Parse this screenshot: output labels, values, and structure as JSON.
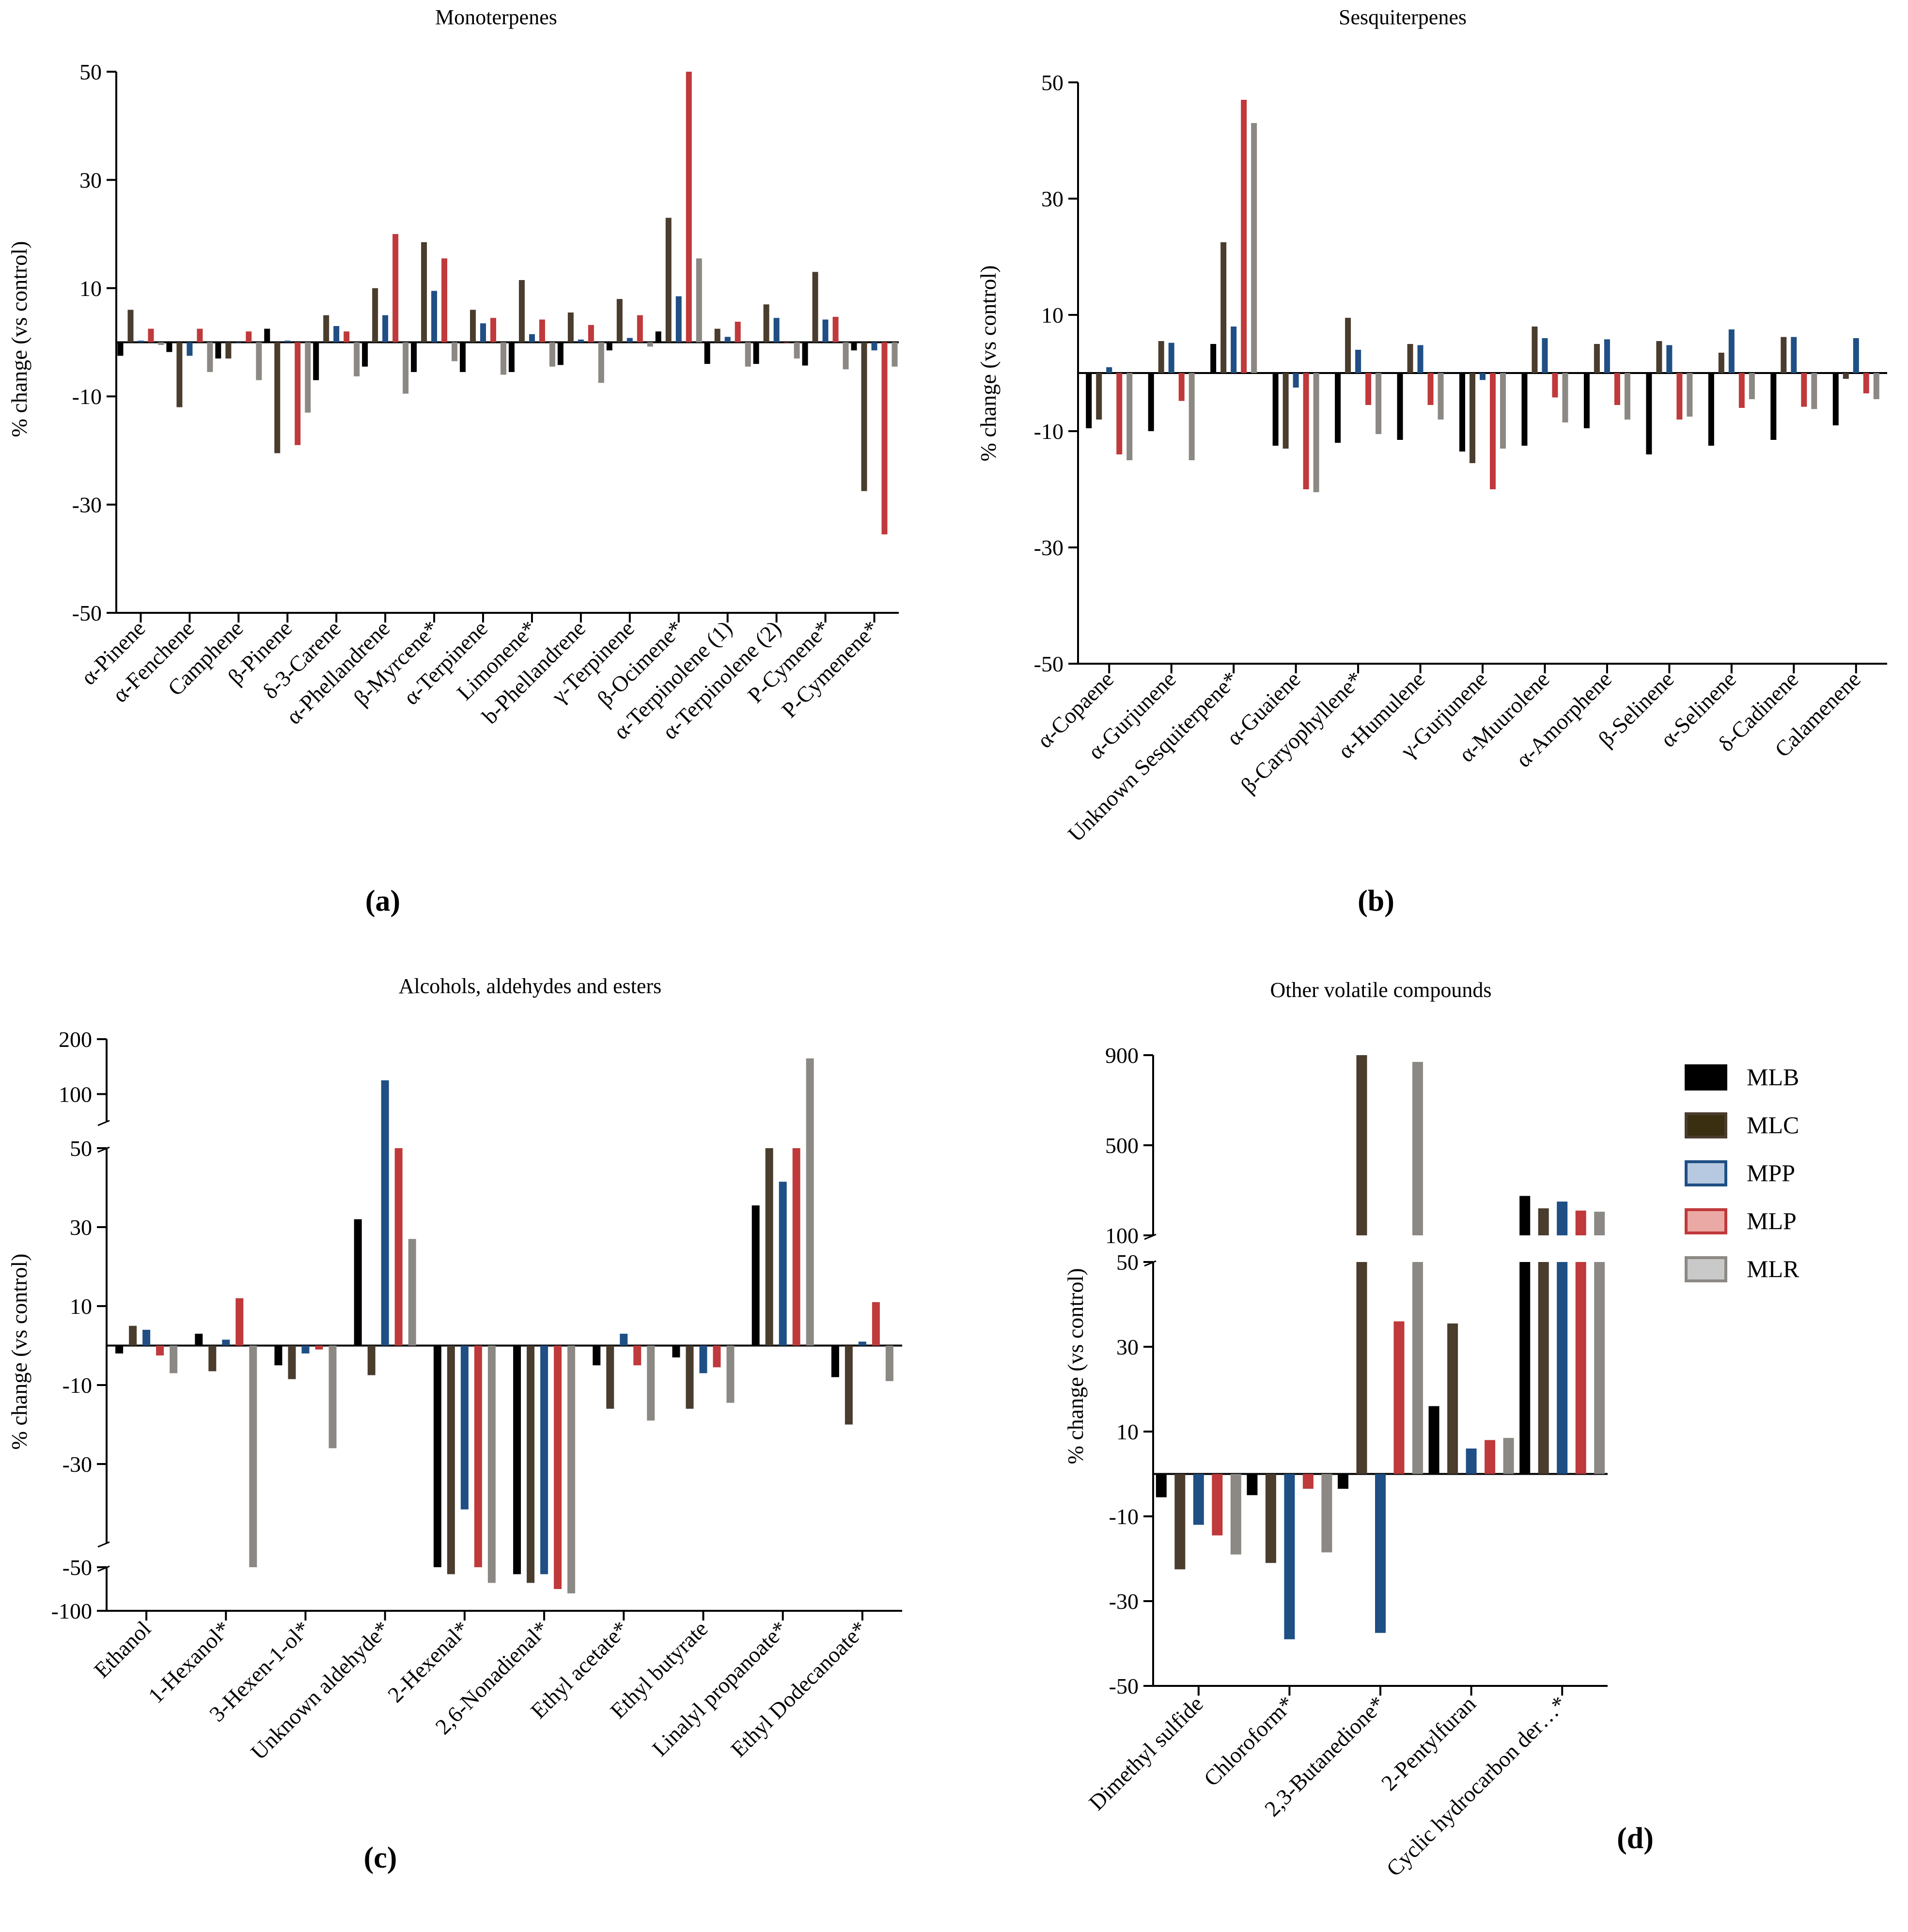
{
  "colors": {
    "MLB": "#000000",
    "MLC": "#4a3d2e",
    "MPP": "#1f4f85",
    "MLP": "#c0393b",
    "MLR": "#8c8984"
  },
  "legend": {
    "items": [
      {
        "key": "MLB",
        "label": "MLB",
        "fill": "#000000",
        "edge": "#000000"
      },
      {
        "key": "MLC",
        "label": "MLC",
        "fill": "#3a2f10",
        "edge": "#4a3d2e"
      },
      {
        "key": "MPP",
        "label": "MPP",
        "fill": "#b7c9e0",
        "edge": "#1f4f85"
      },
      {
        "key": "MLP",
        "label": "MLP",
        "fill": "#eba9a5",
        "edge": "#c0393b"
      },
      {
        "key": "MLR",
        "label": "MLR",
        "fill": "#c9c9c9",
        "edge": "#8c8984"
      }
    ]
  },
  "chart_data": [
    {
      "id": "a",
      "type": "bar",
      "panel_label": "(a)",
      "title": "Monoterpenes",
      "ylabel": "% change (vs control)",
      "ylim": [
        -50,
        50
      ],
      "yticks": [
        -50,
        -30,
        -10,
        10,
        30,
        50
      ],
      "categories": [
        "α-Pinene",
        "α-Fenchene",
        "Camphene",
        "β-Pinene",
        "δ-3-Carene",
        "α-Phellandrene",
        "β-Myrcene*",
        "α-Terpinene",
        "Limonene*",
        "b-Phellandrene",
        "γ-Terpinene",
        "β-Ocimene*",
        "α-Terpinolene (1)",
        "α-Terpinolene (2)",
        "P-Cymene*",
        "P-Cymenene*"
      ],
      "series": [
        {
          "name": "MLB",
          "values": [
            -2.5,
            -1.8,
            -3,
            2.5,
            -7,
            -4.5,
            -5.5,
            -5.5,
            -5.5,
            -4.2,
            -1.5,
            2,
            -4,
            -4,
            -4.3,
            -1.5
          ]
        },
        {
          "name": "MLC",
          "values": [
            6,
            -12,
            -3,
            -20.5,
            5,
            10,
            18.5,
            6,
            11.5,
            5.5,
            8,
            23,
            2.5,
            7,
            13,
            -27.5
          ]
        },
        {
          "name": "MPP",
          "values": [
            0.3,
            -2.5,
            0,
            0.3,
            3,
            5,
            9.5,
            3.5,
            1.5,
            0.5,
            0.8,
            8.5,
            1,
            4.5,
            4.2,
            -1.5
          ]
        },
        {
          "name": "MLP",
          "values": [
            2.5,
            2.5,
            2,
            -19,
            2,
            20,
            15.5,
            4.5,
            4.2,
            3.2,
            5,
            50,
            3.8,
            0,
            4.7,
            -35.5
          ]
        },
        {
          "name": "MLR",
          "values": [
            -0.5,
            -5.5,
            -7,
            -13,
            -6.3,
            -9.5,
            -3.5,
            -6,
            -4.5,
            -7.5,
            -0.8,
            15.5,
            -4.5,
            -3,
            -5,
            -4.5
          ]
        }
      ]
    },
    {
      "id": "b",
      "type": "bar",
      "panel_label": "(b)",
      "title": "Sesquiterpenes",
      "ylabel": "% change (vs control)",
      "ylim": [
        -50,
        50
      ],
      "yticks": [
        -50,
        -30,
        -10,
        10,
        30,
        50
      ],
      "categories": [
        "α-Copaene",
        "α-Gurjunene",
        "Unknown Sesquiterpene*",
        "α-Guaiene",
        "β-Caryophyllene*",
        "α-Humulene",
        "γ-Gurjunene",
        "α-Muurolene",
        "α-Amorphene",
        "β-Selinene",
        "α-Selinene",
        "δ-Cadinene",
        "Calamenene"
      ],
      "series": [
        {
          "name": "MLB",
          "values": [
            -9.5,
            -10,
            5,
            -12.5,
            -12,
            -11.5,
            -13.5,
            -12.5,
            -9.5,
            -14,
            -12.5,
            -11.5,
            -9
          ]
        },
        {
          "name": "MLC",
          "values": [
            -8,
            5.5,
            22.5,
            -13,
            9.5,
            5,
            -15.5,
            8,
            5,
            5.5,
            3.5,
            6.2,
            -1
          ]
        },
        {
          "name": "MPP",
          "values": [
            1,
            5.2,
            8,
            -2.5,
            4,
            4.8,
            -1.2,
            6,
            5.8,
            4.8,
            7.5,
            6.2,
            6
          ]
        },
        {
          "name": "MLP",
          "values": [
            -14,
            -4.8,
            47,
            -20,
            -5.5,
            -5.5,
            -20,
            -4.2,
            -5.5,
            -8,
            -6,
            -5.8,
            -3.5
          ]
        },
        {
          "name": "MLR",
          "values": [
            -15,
            -15,
            43,
            -20.5,
            -10.5,
            -8,
            -13,
            -8.5,
            -8,
            -7.5,
            -4.5,
            -6.2,
            -4.5
          ]
        }
      ]
    },
    {
      "id": "c",
      "type": "bar",
      "panel_label": "(c)",
      "title": "Alcohols, aldehydes and esters",
      "ylabel": "% change (vs control)",
      "ylim": [
        -100,
        200
      ],
      "yticks": [
        -100,
        -50,
        -30,
        -10,
        10,
        30,
        50,
        100,
        200
      ],
      "axis_break": {
        "lower": [
          -100,
          -50
        ],
        "middle": [
          -50,
          50
        ],
        "upper": [
          50,
          200
        ]
      },
      "categories": [
        "Ethanol",
        "1-Hexanol*",
        "3-Hexen-1-ol*",
        "Unknown aldehyde*",
        "2-Hexenal*",
        "2,6-Nonadienal*",
        "Ethyl acetate*",
        "Ethyl butyrate",
        "Linalyl propanoate*",
        "Ethyl Dodecanoate*"
      ],
      "series": [
        {
          "name": "MLB",
          "values": [
            -2,
            3,
            -5,
            32,
            -50,
            -58,
            -5,
            -3,
            35.5,
            -8
          ]
        },
        {
          "name": "MLC",
          "values": [
            5,
            -6.5,
            -8.5,
            -7.5,
            -58,
            -68,
            -16,
            -16,
            50,
            -20
          ]
        },
        {
          "name": "MPP",
          "values": [
            4,
            1.5,
            -2,
            125,
            -41.5,
            -58,
            3,
            -7,
            41.5,
            1
          ]
        },
        {
          "name": "MLP",
          "values": [
            -2.5,
            12,
            -1,
            50,
            -50,
            -75,
            -5,
            -5.5,
            50,
            11
          ]
        },
        {
          "name": "MLR",
          "values": [
            -7,
            -50,
            -26,
            27,
            -68,
            -80,
            -19,
            -14.5,
            165,
            -9
          ]
        }
      ]
    },
    {
      "id": "d",
      "type": "bar",
      "panel_label": "(d)",
      "title": "Other volatile compounds",
      "ylabel": "% change (vs control)",
      "ylim": [
        -50,
        900
      ],
      "yticks": [
        -50,
        -30,
        -10,
        10,
        30,
        50,
        100,
        500,
        900
      ],
      "axis_break": {
        "lower": [
          -50,
          50
        ],
        "upper": [
          100,
          900
        ]
      },
      "categories": [
        "Dimethyl sulfide",
        "Chloroform*",
        "2,3-Butanedione*",
        "2-Pentylfuran",
        "Cyclic hydrocarbon der…*"
      ],
      "series": [
        {
          "name": "MLB",
          "values": [
            -5.5,
            -5,
            -3.5,
            16,
            275
          ]
        },
        {
          "name": "MLC",
          "values": [
            -22.5,
            -21,
            900,
            35.5,
            220
          ]
        },
        {
          "name": "MPP",
          "values": [
            -12,
            -39,
            -37.5,
            6,
            250
          ]
        },
        {
          "name": "MLP",
          "values": [
            -14.5,
            -3.5,
            36,
            8,
            210
          ]
        },
        {
          "name": "MLR",
          "values": [
            -19,
            -18.5,
            870,
            8.5,
            205
          ]
        }
      ]
    }
  ]
}
